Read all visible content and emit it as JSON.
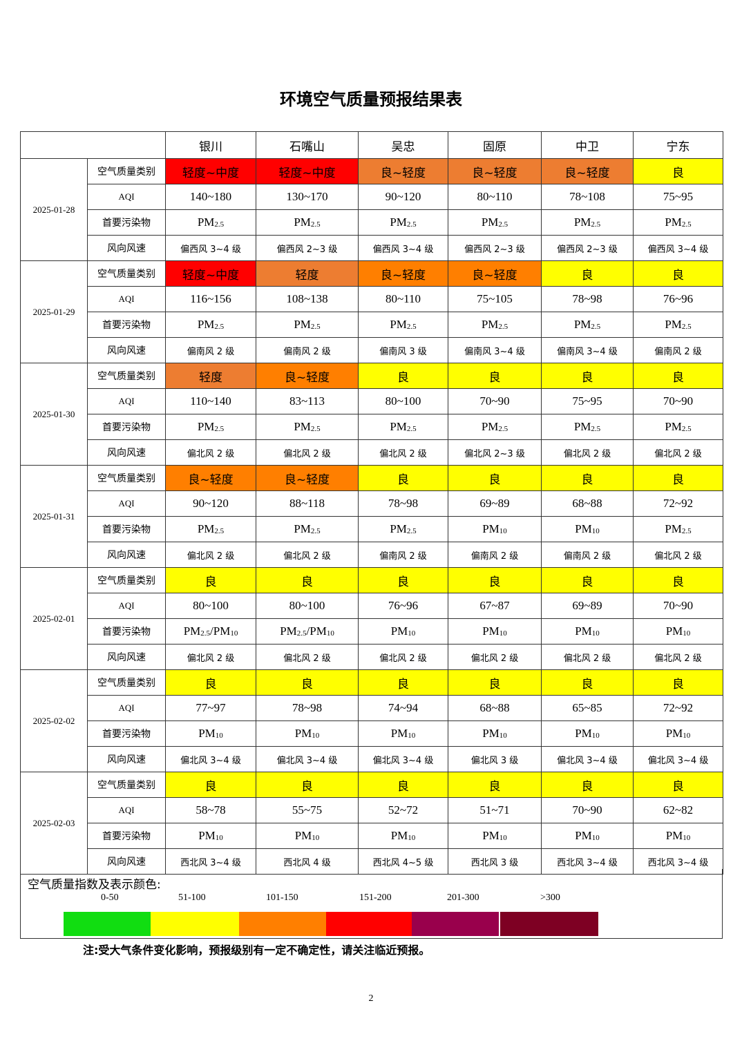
{
  "title": "环境空气质量预报结果表",
  "cities": [
    "银川",
    "石嘴山",
    "吴忠",
    "固原",
    "中卫",
    "宁东"
  ],
  "row_labels": {
    "category": "空气质量类别",
    "aqi": "AQI",
    "pollutant": "首要污染物",
    "wind": "风向风速"
  },
  "colors": {
    "good": "#ffff00",
    "light_orange": "#ed7d31",
    "orange": "#ff7f00",
    "red": "#ff0000"
  },
  "days": [
    {
      "date": "2025-01-28",
      "category": [
        "轻度~中度",
        "轻度~中度",
        "良~轻度",
        "良~轻度",
        "良~轻度",
        "良"
      ],
      "cat_color": [
        "red",
        "red",
        "light_orange",
        "light_orange",
        "light_orange",
        "good"
      ],
      "aqi": [
        "140~180",
        "130~170",
        "90~120",
        "80~110",
        "78~108",
        "75~95"
      ],
      "pollutant": [
        "PM2.5",
        "PM2.5",
        "PM2.5",
        "PM2.5",
        "PM2.5",
        "PM2.5"
      ],
      "wind": [
        "偏西风 3~4 级",
        "偏西风 2~3 级",
        "偏西风 3~4 级",
        "偏西风 2~3 级",
        "偏西风 2~3 级",
        "偏西风 3~4 级"
      ]
    },
    {
      "date": "2025-01-29",
      "category": [
        "轻度~中度",
        "轻度",
        "良~轻度",
        "良~轻度",
        "良",
        "良"
      ],
      "cat_color": [
        "red",
        "light_orange",
        "orange",
        "orange",
        "good",
        "good"
      ],
      "aqi": [
        "116~156",
        "108~138",
        "80~110",
        "75~105",
        "78~98",
        "76~96"
      ],
      "pollutant": [
        "PM2.5",
        "PM2.5",
        "PM2.5",
        "PM2.5",
        "PM2.5",
        "PM2.5"
      ],
      "wind": [
        "偏南风 2 级",
        "偏南风 2 级",
        "偏南风 3 级",
        "偏南风 3~4 级",
        "偏南风 3~4 级",
        "偏南风 2 级"
      ]
    },
    {
      "date": "2025-01-30",
      "category": [
        "轻度",
        "良~轻度",
        "良",
        "良",
        "良",
        "良"
      ],
      "cat_color": [
        "light_orange",
        "orange",
        "good",
        "good",
        "good",
        "good"
      ],
      "aqi": [
        "110~140",
        "83~113",
        "80~100",
        "70~90",
        "75~95",
        "70~90"
      ],
      "pollutant": [
        "PM2.5",
        "PM2.5",
        "PM2.5",
        "PM2.5",
        "PM2.5",
        "PM2.5"
      ],
      "wind": [
        "偏北风 2 级",
        "偏北风 2 级",
        "偏北风 2 级",
        "偏北风 2~3 级",
        "偏北风 2 级",
        "偏北风 2 级"
      ]
    },
    {
      "date": "2025-01-31",
      "category": [
        "良~轻度",
        "良~轻度",
        "良",
        "良",
        "良",
        "良"
      ],
      "cat_color": [
        "orange",
        "orange",
        "good",
        "good",
        "good",
        "good"
      ],
      "aqi": [
        "90~120",
        "88~118",
        "78~98",
        "69~89",
        "68~88",
        "72~92"
      ],
      "pollutant": [
        "PM2.5",
        "PM2.5",
        "PM2.5",
        "PM10",
        "PM10",
        "PM2.5"
      ],
      "wind": [
        "偏北风 2 级",
        "偏北风 2 级",
        "偏南风 2 级",
        "偏南风 2 级",
        "偏南风 2 级",
        "偏北风 2 级"
      ]
    },
    {
      "date": "2025-02-01",
      "category": [
        "良",
        "良",
        "良",
        "良",
        "良",
        "良"
      ],
      "cat_color": [
        "good",
        "good",
        "good",
        "good",
        "good",
        "good"
      ],
      "aqi": [
        "80~100",
        "80~100",
        "76~96",
        "67~87",
        "69~89",
        "70~90"
      ],
      "pollutant": [
        "PM2.5/PM10",
        "PM2.5/PM10",
        "PM10",
        "PM10",
        "PM10",
        "PM10"
      ],
      "wind": [
        "偏北风 2 级",
        "偏北风 2 级",
        "偏北风 2 级",
        "偏北风 2 级",
        "偏北风 2 级",
        "偏北风 2 级"
      ]
    },
    {
      "date": "2025-02-02",
      "category": [
        "良",
        "良",
        "良",
        "良",
        "良",
        "良"
      ],
      "cat_color": [
        "good",
        "good",
        "good",
        "good",
        "good",
        "good"
      ],
      "aqi": [
        "77~97",
        "78~98",
        "74~94",
        "68~88",
        "65~85",
        "72~92"
      ],
      "pollutant": [
        "PM10",
        "PM10",
        "PM10",
        "PM10",
        "PM10",
        "PM10"
      ],
      "wind": [
        "偏北风 3~4 级",
        "偏北风 3~4 级",
        "偏北风 3~4 级",
        "偏北风 3 级",
        "偏北风 3~4 级",
        "偏北风 3~4 级"
      ]
    },
    {
      "date": "2025-02-03",
      "category": [
        "良",
        "良",
        "良",
        "良",
        "良",
        "良"
      ],
      "cat_color": [
        "good",
        "good",
        "good",
        "good",
        "good",
        "good"
      ],
      "aqi": [
        "58~78",
        "55~75",
        "52~72",
        "51~71",
        "70~90",
        "62~82"
      ],
      "pollutant": [
        "PM10",
        "PM10",
        "PM10",
        "PM10",
        "PM10",
        "PM10"
      ],
      "wind": [
        "西北风 3~4 级",
        "西北风 4 级",
        "西北风 4~5 级",
        "西北风 3 级",
        "西北风 3~4 级",
        "西北风 3~4 级"
      ]
    }
  ],
  "legend": {
    "title": "空气质量指数及表示颜色:",
    "items": [
      {
        "range": "0-50",
        "color": "#11dd11"
      },
      {
        "range": "51-100",
        "color": "#ffff00"
      },
      {
        "range": "101-150",
        "color": "#ff7f00"
      },
      {
        "range": "151-200",
        "color": "#ff0000"
      },
      {
        "range": "201-300",
        "color": "#99004c"
      },
      {
        "range": ">300",
        "color": "#7e0023"
      }
    ]
  },
  "note": "注:受大气条件变化影响，预报级别有一定不确定性，请关注临近预报。",
  "page_number": "2"
}
